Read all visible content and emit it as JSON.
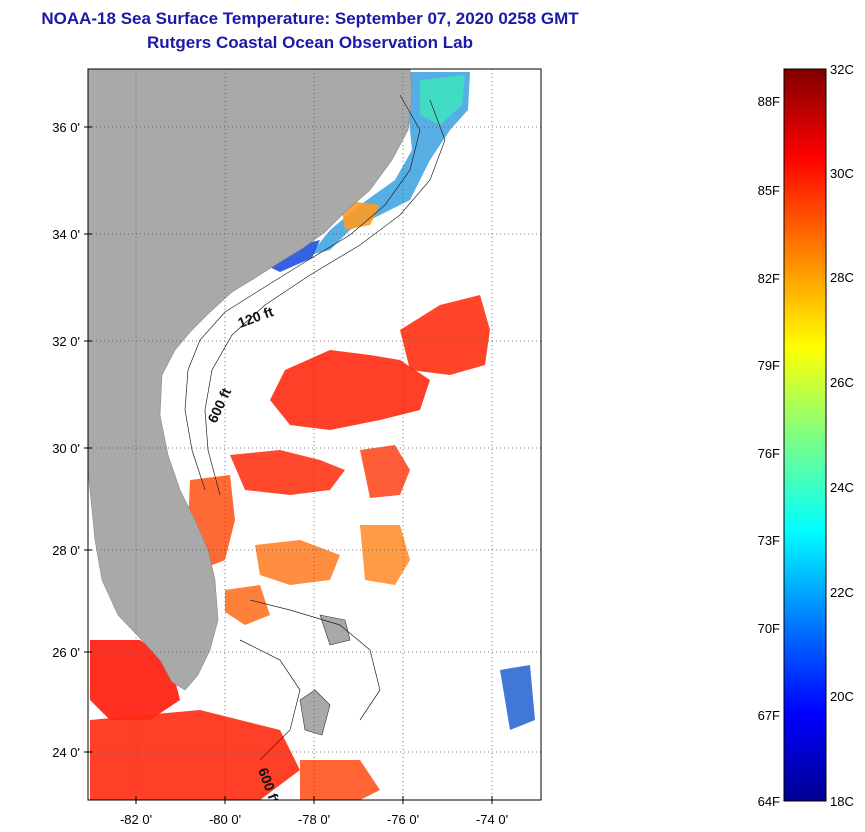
{
  "header": {
    "title": "NOAA-18 Sea Surface Temperature:  September 07, 2020 0258 GMT",
    "subtitle": "Rutgers Coastal Ocean Observation Lab"
  },
  "map": {
    "lon_ticks": [
      "-82 0'",
      "-80 0'",
      "-78 0'",
      "-76 0'",
      "-74 0'"
    ],
    "lat_ticks": [
      "36 0'",
      "34 0'",
      "32 0'",
      "30 0'",
      "28 0'",
      "26 0'",
      "24 0'"
    ],
    "contour_labels": [
      "120 ft",
      "600 ft",
      "600 ft"
    ],
    "colors": {
      "land": "#a9a9a9",
      "ocean_nodata": "#ffffff"
    }
  },
  "colorbar": {
    "fahrenheit_labels": [
      "88F",
      "85F",
      "82F",
      "79F",
      "76F",
      "73F",
      "70F",
      "67F",
      "64F"
    ],
    "celsius_labels": [
      "32C",
      "30C",
      "28C",
      "26C",
      "24C",
      "22C",
      "20C",
      "18C"
    ],
    "range_c": [
      18,
      32
    ],
    "colors": [
      "#00008f",
      "#0000ff",
      "#0080ff",
      "#00ffff",
      "#80ff80",
      "#ffff00",
      "#ff8000",
      "#ff0000",
      "#800000"
    ]
  }
}
